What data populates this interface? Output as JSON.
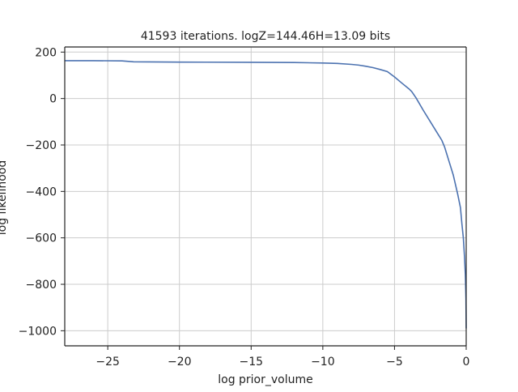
{
  "chart_data": {
    "type": "line",
    "title": "41593 iterations. logZ=144.46H=13.09 bits",
    "xlabel": "log prior_volume",
    "ylabel": "log likelihood",
    "xlim": [
      -28,
      0
    ],
    "ylim": [
      -1065,
      222
    ],
    "grid": true,
    "x_ticks": [
      -25,
      -20,
      -15,
      -10,
      -5,
      0
    ],
    "x_tick_labels": [
      "−25",
      "−20",
      "−15",
      "−10",
      "−5",
      "0"
    ],
    "y_ticks": [
      200,
      0,
      -200,
      -400,
      -600,
      -800,
      -1000
    ],
    "y_tick_labels": [
      "200",
      "0",
      "−200",
      "−400",
      "−600",
      "−800",
      "−1000"
    ],
    "line_color": "#4c72b0",
    "series": [
      {
        "x": [
          -28.0,
          -26.0,
          -24.0,
          -23.2,
          -20.0,
          -15.0,
          -12.0,
          -10.0,
          -9.0,
          -8.0,
          -7.5,
          -7.0,
          -6.5,
          -6.0,
          -5.5,
          -5.0,
          -4.5,
          -4.0,
          -3.8,
          -3.5,
          -3.0,
          -2.5,
          -2.0,
          -1.7,
          -1.5,
          -1.2,
          -0.9,
          -0.6,
          -0.4,
          -0.3,
          -0.2,
          -0.12,
          -0.06,
          -0.02,
          0.0
        ],
        "y": [
          163,
          163,
          162,
          158,
          157,
          156,
          155,
          153,
          151,
          147,
          144,
          139,
          133,
          125,
          116,
          93,
          67,
          42,
          30,
          3,
          -50,
          -100,
          -150,
          -180,
          -210,
          -270,
          -330,
          -410,
          -470,
          -540,
          -600,
          -680,
          -760,
          -860,
          -990
        ]
      }
    ]
  }
}
